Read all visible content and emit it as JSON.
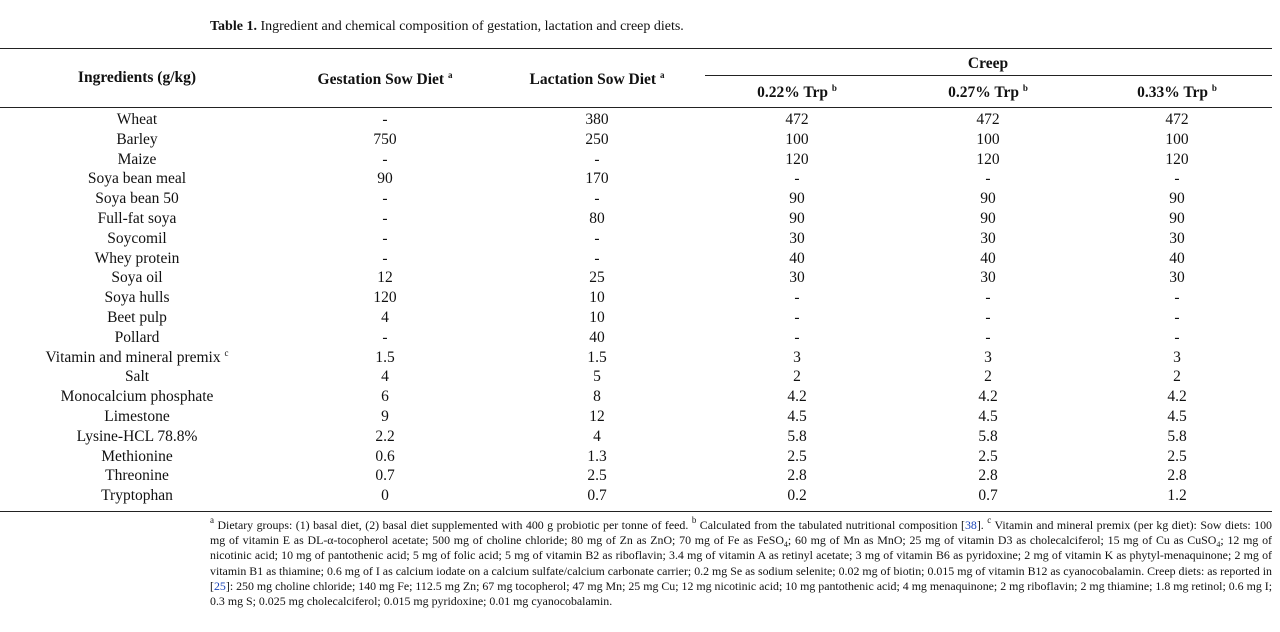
{
  "title": {
    "label": "Table 1.",
    "text": "Ingredient and chemical composition of gestation, lactation and creep diets."
  },
  "table": {
    "header": {
      "ingredient": "Ingredients (g/kg)",
      "columns": [
        {
          "text": "Gestation Sow Diet",
          "note": "a"
        },
        {
          "text": "Lactation Sow Diet",
          "note": "a"
        }
      ],
      "group": "Creep",
      "subcolumns": [
        {
          "text": "0.22% Trp",
          "note": "b"
        },
        {
          "text": "0.27% Trp",
          "note": "b"
        },
        {
          "text": "0.33% Trp",
          "note": "b"
        }
      ]
    },
    "rows": [
      {
        "label": "Wheat",
        "cells": [
          "-",
          "380",
          "472",
          "472",
          "472"
        ]
      },
      {
        "label": "Barley",
        "cells": [
          "750",
          "250",
          "100",
          "100",
          "100"
        ]
      },
      {
        "label": "Maize",
        "cells": [
          "-",
          "-",
          "120",
          "120",
          "120"
        ]
      },
      {
        "label": "Soya bean meal",
        "cells": [
          "90",
          "170",
          "-",
          "-",
          "-"
        ]
      },
      {
        "label": "Soya bean 50",
        "cells": [
          "-",
          "-",
          "90",
          "90",
          "90"
        ]
      },
      {
        "label": "Full-fat soya",
        "cells": [
          "-",
          "80",
          "90",
          "90",
          "90"
        ]
      },
      {
        "label": "Soycomil",
        "cells": [
          "-",
          "-",
          "30",
          "30",
          "30"
        ]
      },
      {
        "label": "Whey protein",
        "cells": [
          "-",
          "-",
          "40",
          "40",
          "40"
        ]
      },
      {
        "label": "Soya oil",
        "cells": [
          "12",
          "25",
          "30",
          "30",
          "30"
        ]
      },
      {
        "label": "Soya hulls",
        "cells": [
          "120",
          "10",
          "-",
          "-",
          "-"
        ]
      },
      {
        "label": "Beet pulp",
        "cells": [
          "4",
          "10",
          "-",
          "-",
          "-"
        ]
      },
      {
        "label": "Pollard",
        "cells": [
          "-",
          "40",
          "-",
          "-",
          "-"
        ]
      },
      {
        "label": "Vitamin and mineral premix",
        "note": "c",
        "cells": [
          "1.5",
          "1.5",
          "3",
          "3",
          "3"
        ]
      },
      {
        "label": "Salt",
        "cells": [
          "4",
          "5",
          "2",
          "2",
          "2"
        ]
      },
      {
        "label": "Monocalcium phosphate",
        "cells": [
          "6",
          "8",
          "4.2",
          "4.2",
          "4.2"
        ]
      },
      {
        "label": "Limestone",
        "cells": [
          "9",
          "12",
          "4.5",
          "4.5",
          "4.5"
        ]
      },
      {
        "label": "Lysine-HCL 78.8%",
        "cells": [
          "2.2",
          "4",
          "5.8",
          "5.8",
          "5.8"
        ]
      },
      {
        "label": "Methionine",
        "cells": [
          "0.6",
          "1.3",
          "2.5",
          "2.5",
          "2.5"
        ]
      },
      {
        "label": "Threonine",
        "cells": [
          "0.7",
          "2.5",
          "2.8",
          "2.8",
          "2.8"
        ]
      },
      {
        "label": "Tryptophan",
        "cells": [
          "0",
          "0.7",
          "0.2",
          "0.7",
          "1.2"
        ]
      }
    ]
  },
  "footnote": {
    "parts": [
      "a",
      " Dietary groups: (1) basal diet, (2) basal diet supplemented with 400 g probiotic per tonne of feed. ",
      "b",
      " Calculated from the tabulated nutritional composition [",
      "38",
      "]. ",
      "c",
      " Vitamin and mineral premix (per kg diet): Sow diets: 100 mg of vitamin E as DL-α-tocopherol acetate; 500 mg of choline chloride; 80 mg of Zn as ZnO; 70 mg of Fe as FeSO",
      "4",
      "; 60 mg of Mn as MnO; 25 mg of vitamin D3 as cholecalciferol; 15 mg of Cu as CuSO",
      "4",
      "; 12 mg of nicotinic acid; 10 mg of pantothenic acid; 5 mg of folic acid; 5 mg of vitamin B2 as riboflavin; 3.4 mg of vitamin A as retinyl acetate; 3 mg of vitamin B6 as pyridoxine; 2 mg of vitamin K as phytyl-menaquinone; 2 mg of vitamin B1 as thiamine; 0.6 mg of I as calcium iodate on a calcium sulfate/calcium carbonate carrier; 0.2 mg Se as sodium selenite; 0.02 mg of biotin; 0.015 mg of vitamin B12 as cyanocobalamin. Creep diets: as reported in [",
      "25",
      "]: 250 mg choline chloride; 140 mg Fe; 112.5 mg Zn; 67 mg tocopherol; 47 mg Mn; 25 mg Cu; 12 mg nicotinic acid; 10 mg pantothenic acid; 4 mg menaquinone; 2 mg riboflavin; 2 mg thiamine; 1.8 mg retinol; 0.6 mg I; 0.3 mg S; 0.025 mg cholecalciferol; 0.015 mg pyridoxine; 0.01 mg cyanocobalamin."
    ]
  }
}
